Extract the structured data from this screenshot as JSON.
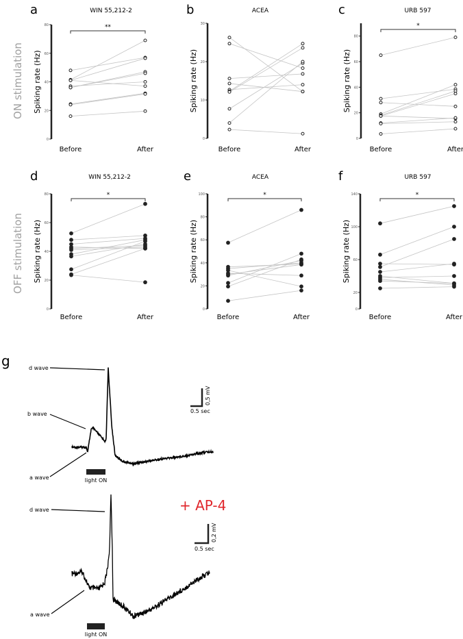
{
  "row_labels": {
    "on": "ON stimulation",
    "off": "OFF stimulation"
  },
  "row_label_color": "#a0a0a0",
  "chart_data": [
    {
      "panel": "a",
      "type": "paired-scatter",
      "title": "WIN 55,212-2",
      "ylabel": "Spiking rate (Hz)",
      "categories": [
        "Before",
        "After"
      ],
      "ylim": [
        0,
        80
      ],
      "yticks": [
        0,
        20,
        40,
        60,
        80
      ],
      "marker": "open",
      "significance": "**",
      "pairs": [
        [
          48,
          57
        ],
        [
          41.5,
          69
        ],
        [
          41,
          56.5
        ],
        [
          41,
          37
        ],
        [
          37,
          40
        ],
        [
          36,
          47
        ],
        [
          36,
          46
        ],
        [
          24.5,
          32
        ],
        [
          24,
          31.5
        ],
        [
          16,
          19.5
        ]
      ]
    },
    {
      "panel": "b",
      "type": "paired-scatter",
      "title": "ACEA",
      "ylabel": "Spiking rate (Hz)",
      "categories": [
        "Before",
        "After"
      ],
      "ylim": [
        0,
        30
      ],
      "yticks": [
        0,
        10,
        20,
        30
      ],
      "marker": "open",
      "significance": "",
      "pairs": [
        [
          26.3,
          12.2
        ],
        [
          24.7,
          18.3
        ],
        [
          15.6,
          16.8
        ],
        [
          14.3,
          12.2
        ],
        [
          12.7,
          14
        ],
        [
          12.3,
          24.7
        ],
        [
          12.1,
          23.6
        ],
        [
          7.7,
          19.6
        ],
        [
          4,
          20
        ],
        [
          2.3,
          1.2
        ]
      ]
    },
    {
      "panel": "c",
      "type": "paired-scatter",
      "title": "URB 597",
      "ylabel": "Spiking rate (Hz)",
      "categories": [
        "Before",
        "After"
      ],
      "ylim": [
        0,
        90
      ],
      "yticks": [
        0,
        20,
        40,
        60,
        80
      ],
      "marker": "open",
      "significance": "*",
      "pairs": [
        [
          65,
          79
        ],
        [
          31,
          38.5
        ],
        [
          28,
          25
        ],
        [
          19,
          42
        ],
        [
          18,
          37
        ],
        [
          17.5,
          35
        ],
        [
          17.5,
          15.5
        ],
        [
          12,
          16
        ],
        [
          11.5,
          13
        ],
        [
          3.5,
          7.5
        ]
      ]
    },
    {
      "panel": "d",
      "type": "paired-scatter",
      "title": "WIN 55,212-2",
      "ylabel": "Spiking rate (Hz)",
      "categories": [
        "Before",
        "After"
      ],
      "ylim": [
        0,
        80
      ],
      "yticks": [
        0,
        20,
        40,
        60,
        80
      ],
      "marker": "filled",
      "significance": "*",
      "pairs": [
        [
          52.5,
          73
        ],
        [
          48,
          51
        ],
        [
          45,
          49
        ],
        [
          43,
          42
        ],
        [
          42,
          44
        ],
        [
          41,
          43
        ],
        [
          38,
          48
        ],
        [
          36.5,
          45
        ],
        [
          27.5,
          47
        ],
        [
          24,
          42
        ],
        [
          23.5,
          18.5
        ]
      ]
    },
    {
      "panel": "e",
      "type": "paired-scatter",
      "title": "ACEA",
      "ylabel": "Spiking rate (Hz)",
      "categories": [
        "Before",
        "After"
      ],
      "ylim": [
        0,
        100
      ],
      "yticks": [
        0,
        20,
        40,
        60,
        80,
        100
      ],
      "marker": "filled",
      "significance": "*",
      "pairs": [
        [
          57.5,
          86
        ],
        [
          36.5,
          39
        ],
        [
          35,
          40
        ],
        [
          33.5,
          19.5
        ],
        [
          31,
          29
        ],
        [
          30,
          38.5
        ],
        [
          29,
          42
        ],
        [
          22.5,
          48
        ],
        [
          19.5,
          43
        ],
        [
          7,
          16
        ]
      ]
    },
    {
      "panel": "f",
      "type": "paired-scatter",
      "title": "URB 597",
      "ylabel": "Spiking rate (Hz)",
      "categories": [
        "Before",
        "After"
      ],
      "ylim": [
        0,
        140
      ],
      "yticks": [
        0,
        20,
        60,
        100,
        140
      ],
      "marker": "filled",
      "significance": "*",
      "pairs": [
        [
          104,
          125
        ],
        [
          66,
          100
        ],
        [
          51,
          85
        ],
        [
          55,
          54
        ],
        [
          45,
          55
        ],
        [
          40,
          31
        ],
        [
          38,
          40
        ],
        [
          36,
          29
        ],
        [
          34,
          31
        ],
        [
          25,
          27
        ]
      ]
    }
  ],
  "panel_g": {
    "letter": "g",
    "top": {
      "d_wave": "d wave",
      "b_wave": "b wave",
      "a_wave": "a wave",
      "light": "light ON",
      "scale_v": "0,5 mV",
      "scale_h": "0.5 sec"
    },
    "bottom": {
      "condition": "+ AP-4",
      "condition_color": "#e0262b",
      "d_wave": "d wave",
      "a_wave": "a wave",
      "light": "light ON",
      "scale_v": "0,2 mV",
      "scale_h": "0.5 sec"
    }
  }
}
